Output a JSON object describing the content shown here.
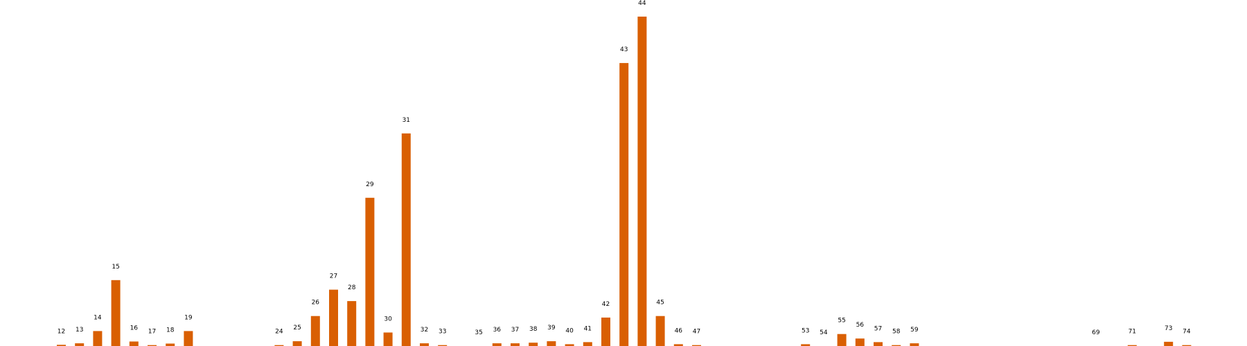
{
  "chart_data": {
    "type": "bar",
    "title": "",
    "xlabel": "",
    "ylabel": "",
    "grid": false,
    "legend": "none",
    "bar_color": "#d95f02",
    "categories": [
      "12",
      "13",
      "14",
      "15",
      "16",
      "17",
      "18",
      "19",
      "24",
      "25",
      "26",
      "27",
      "28",
      "29",
      "30",
      "31",
      "32",
      "33",
      "35",
      "36",
      "37",
      "38",
      "39",
      "40",
      "41",
      "42",
      "43",
      "44",
      "45",
      "46",
      "47",
      "53",
      "54",
      "55",
      "56",
      "57",
      "58",
      "59",
      "69",
      "71",
      "73",
      "74"
    ],
    "values": [
      0.4,
      0.9,
      5,
      22,
      1.5,
      0.3,
      0.8,
      5,
      0.3,
      1.6,
      10,
      18.8,
      15,
      49.5,
      4.5,
      71,
      0.9,
      0.3,
      0,
      0.9,
      0.9,
      1.1,
      1.6,
      0.6,
      1.3,
      9.5,
      94.5,
      110,
      10,
      0.6,
      0.3,
      0.6,
      0,
      4,
      2.5,
      1.3,
      0.3,
      0.9,
      0,
      0.3,
      1.4,
      0.3
    ],
    "ylim": [
      0,
      110
    ]
  }
}
